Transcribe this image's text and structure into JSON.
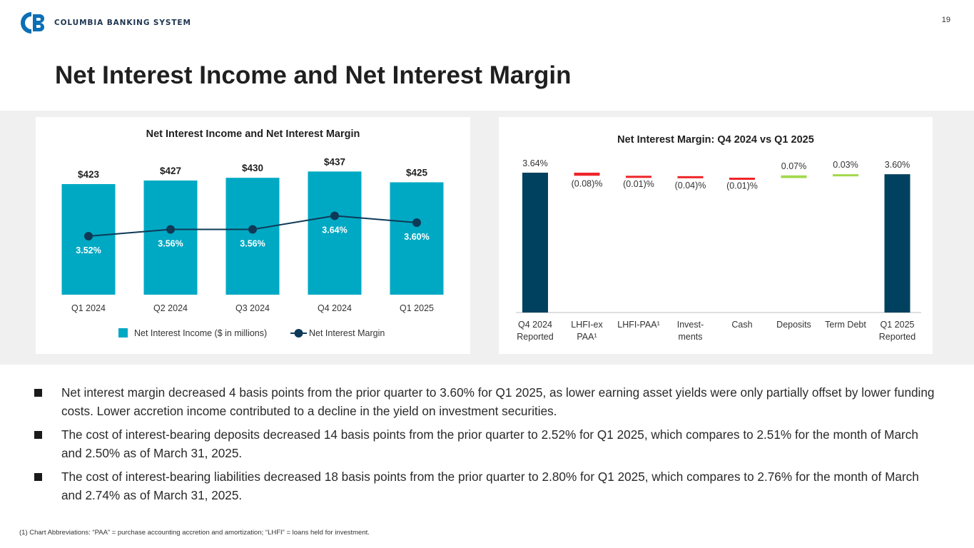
{
  "header": {
    "company_name": "COLUMBIA BANKING SYSTEM",
    "logo_mark": "CB",
    "page_number": "19",
    "title": "Net Interest Income and Net Interest Margin"
  },
  "colors": {
    "bar_teal": "#00A9C3",
    "line_navy": "#0E3A57",
    "bar_navy": "#00415F",
    "decrease_red": "#EE2529",
    "increase_green": "#A2D94A",
    "logo_blue": "#0B6FB6"
  },
  "chart_data": [
    {
      "type": "bar",
      "title": "Net Interest Income and Net Interest Margin",
      "categories": [
        "Q1 2024",
        "Q2 2024",
        "Q3 2024",
        "Q4 2024",
        "Q1 2025"
      ],
      "series": [
        {
          "name": "Net Interest Income ($ in millions)",
          "type": "bar",
          "values": [
            423,
            427,
            430,
            437,
            425
          ],
          "labels": [
            "$423",
            "$427",
            "$430",
            "$437",
            "$425"
          ]
        },
        {
          "name": "Net Interest Margin",
          "type": "line",
          "values": [
            3.52,
            3.56,
            3.56,
            3.64,
            3.6
          ],
          "labels": [
            "3.52%",
            "3.56%",
            "3.56%",
            "3.64%",
            "3.60%"
          ]
        }
      ],
      "legend": [
        "Net Interest Income ($ in millions)",
        "Net Interest Margin"
      ]
    },
    {
      "type": "waterfall",
      "title": "Net Interest Margin: Q4 2024 vs Q1 2025",
      "steps": [
        {
          "label": "Q4 2024 Reported",
          "lines": [
            "Q4 2024",
            "Reported"
          ],
          "value": 3.64,
          "kind": "total",
          "value_label": "3.64%"
        },
        {
          "label": "LHFI-ex PAA¹",
          "lines": [
            "LHFI-ex",
            "PAA¹"
          ],
          "value": -0.08,
          "kind": "delta",
          "value_label": "(0.08)%"
        },
        {
          "label": "LHFI-PAA¹",
          "lines": [
            "LHFI-PAA¹"
          ],
          "value": -0.01,
          "kind": "delta",
          "value_label": "(0.01)%"
        },
        {
          "label": "Invest-ments",
          "lines": [
            "Invest-",
            "ments"
          ],
          "value": -0.04,
          "kind": "delta",
          "value_label": "(0.04)%"
        },
        {
          "label": "Cash",
          "lines": [
            "Cash"
          ],
          "value": -0.01,
          "kind": "delta",
          "value_label": "(0.01)%"
        },
        {
          "label": "Deposits",
          "lines": [
            "Deposits"
          ],
          "value": 0.07,
          "kind": "delta",
          "value_label": "0.07%"
        },
        {
          "label": "Term Debt",
          "lines": [
            "Term Debt"
          ],
          "value": 0.03,
          "kind": "delta",
          "value_label": "0.03%"
        },
        {
          "label": "Q1 2025 Reported",
          "lines": [
            "Q1 2025",
            "Reported"
          ],
          "value": 3.6,
          "kind": "total",
          "value_label": "3.60%"
        }
      ]
    }
  ],
  "bullets": [
    "Net interest margin decreased 4 basis points from the prior quarter to 3.60% for Q1 2025, as lower earning asset yields were only partially offset by lower funding costs. Lower accretion income contributed to a decline in the yield on investment securities.",
    "The cost of interest-bearing deposits decreased 14 basis points from the prior quarter to 2.52% for Q1 2025, which compares to 2.51% for the month of March and 2.50% as of March 31, 2025.",
    "The cost of interest-bearing liabilities decreased 18 basis points from the prior quarter to 2.80% for Q1 2025, which compares to 2.76% for the month of March and 2.74% as of March 31, 2025."
  ],
  "footnote": "(1)  Chart Abbreviations: “PAA” = purchase accounting accretion and amortization; “LHFI” = loans held for investment."
}
